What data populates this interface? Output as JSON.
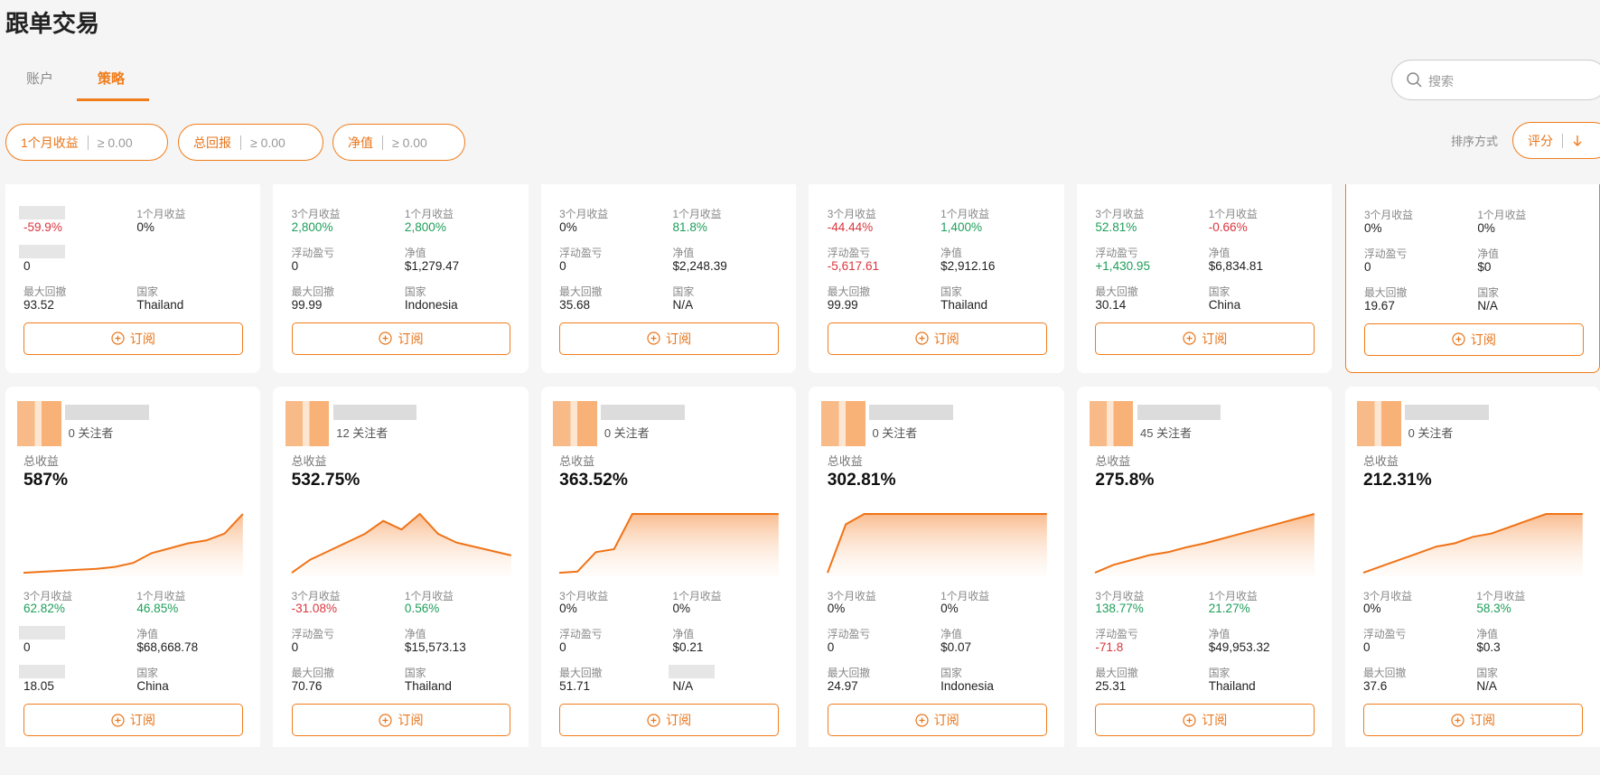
{
  "header": {
    "title": "跟单交易"
  },
  "tabs": [
    {
      "label": "账户"
    },
    {
      "label": "策略",
      "active": true
    }
  ],
  "search": {
    "placeholder": "搜索"
  },
  "filters": [
    {
      "label": "1个月收益",
      "value": "≥ 0.00"
    },
    {
      "label": "总回报",
      "value": "≥ 0.00"
    },
    {
      "label": "净值",
      "value": "≥ 0.00"
    }
  ],
  "sort": {
    "label": "排序方式",
    "option": "评分"
  },
  "cards": [
    {
      "stats": [
        {
          "value": "-59.9%",
          "color": "#d9363e"
        },
        {
          "label": "1个月收益",
          "value": "0%"
        },
        {
          "value": "0"
        },
        null,
        {
          "label": "最大回撤",
          "value": "93.52"
        },
        {
          "label": "国家",
          "value": "Thailand"
        }
      ],
      "button": "订阅"
    },
    {
      "stats": [
        {
          "label": "3个月收益",
          "value": "2,800%",
          "color": "#1e9e5a"
        },
        {
          "label": "1个月收益",
          "value": "2,800%",
          "color": "#1e9e5a"
        },
        {
          "label": "浮动盈亏",
          "value": "0"
        },
        {
          "label": "净值",
          "value": "$1,279.47"
        },
        {
          "label": "最大回撤",
          "value": "99.99"
        },
        {
          "label": "国家",
          "value": "Indonesia"
        }
      ],
      "button": "订阅"
    },
    {
      "stats": [
        {
          "label": "3个月收益",
          "value": "0%"
        },
        {
          "label": "1个月收益",
          "value": "81.8%",
          "color": "#1e9e5a"
        },
        {
          "label": "浮动盈亏",
          "value": "0"
        },
        {
          "label": "净值",
          "value": "$2,248.39"
        },
        {
          "label": "最大回撤",
          "value": "35.68"
        },
        {
          "label": "国家",
          "value": "N/A"
        }
      ],
      "button": "订阅"
    },
    {
      "stats": [
        {
          "label": "3个月收益",
          "value": "-44.44%",
          "color": "#d9363e"
        },
        {
          "label": "1个月收益",
          "value": "1,400%",
          "color": "#1e9e5a"
        },
        {
          "label": "浮动盈亏",
          "value": "-5,617.61",
          "color": "#d9363e"
        },
        {
          "label": "净值",
          "value": "$2,912.16"
        },
        {
          "label": "最大回撤",
          "value": "99.99"
        },
        {
          "label": "国家",
          "value": "Thailand"
        }
      ],
      "button": "订阅"
    },
    {
      "stats": [
        {
          "label": "3个月收益",
          "value": "52.81%",
          "color": "#1e9e5a"
        },
        {
          "label": "1个月收益",
          "value": "-0.66%",
          "color": "#d9363e"
        },
        {
          "label": "浮动盈亏",
          "value": "+1,430.95",
          "color": "#1e9e5a"
        },
        {
          "label": "净值",
          "value": "$6,834.81"
        },
        {
          "label": "最大回撤",
          "value": "30.14"
        },
        {
          "label": "国家",
          "value": "China"
        }
      ],
      "button": "订阅"
    },
    {
      "highlight": true,
      "stats": [
        {
          "label": "3个月收益",
          "value": "0%"
        },
        {
          "label": "1个月收益",
          "value": "0%"
        },
        {
          "label": "浮动盈亏",
          "value": "0"
        },
        {
          "label": "净值",
          "value": "$0"
        },
        {
          "label": "最大回撤",
          "value": "19.67"
        },
        {
          "label": "国家",
          "value": "N/A"
        }
      ],
      "button": "订阅"
    },
    {
      "followers": "0 关注者",
      "total_label": "总收益",
      "total": "587%",
      "trend": [
        0,
        1,
        2,
        3,
        4,
        6,
        10,
        20,
        25,
        30,
        33,
        40,
        60
      ],
      "stats": [
        {
          "label": "3个月收益",
          "value": "62.82%",
          "color": "#1e9e5a"
        },
        {
          "label": "1个月收益",
          "value": "46.85%",
          "color": "#1e9e5a"
        },
        {
          "value": "0"
        },
        {
          "label": "净值",
          "value": "$68,668.78"
        },
        {
          "value": "18.05"
        },
        {
          "label": "国家",
          "value": "China"
        }
      ],
      "button": "订阅"
    },
    {
      "followers": "12 关注者",
      "total_label": "总收益",
      "total": "532.75%",
      "trend": [
        10,
        25,
        35,
        45,
        55,
        70,
        60,
        78,
        55,
        45,
        40,
        35,
        30
      ],
      "stats": [
        {
          "label": "3个月收益",
          "value": "-31.08%",
          "color": "#d9363e"
        },
        {
          "label": "1个月收益",
          "value": "0.56%",
          "color": "#1e9e5a"
        },
        {
          "label": "浮动盈亏",
          "value": "0"
        },
        {
          "label": "净值",
          "value": "$15,573.13"
        },
        {
          "label": "最大回撤",
          "value": "70.76"
        },
        {
          "label": "国家",
          "value": "Thailand"
        }
      ],
      "button": "订阅"
    },
    {
      "followers": "0 关注者",
      "total_label": "总收益",
      "total": "363.52%",
      "trend": [
        0,
        2,
        35,
        40,
        100,
        100,
        100,
        100,
        100,
        100,
        100,
        100,
        100
      ],
      "stats": [
        {
          "label": "3个月收益",
          "value": "0%"
        },
        {
          "label": "1个月收益",
          "value": "0%"
        },
        {
          "label": "浮动盈亏",
          "value": "0"
        },
        {
          "label": "净值",
          "value": "$0.21"
        },
        {
          "label": "最大回撤",
          "value": "51.71"
        },
        {
          "value": "N/A"
        }
      ],
      "button": "订阅"
    },
    {
      "followers": "0 关注者",
      "total_label": "总收益",
      "total": "302.81%",
      "trend": [
        0,
        70,
        85,
        85,
        85,
        85,
        85,
        85,
        85,
        85,
        85,
        85,
        85
      ],
      "stats": [
        {
          "label": "3个月收益",
          "value": "0%"
        },
        {
          "label": "1个月收益",
          "value": "0%"
        },
        {
          "label": "浮动盈亏",
          "value": "0"
        },
        {
          "label": "净值",
          "value": "$0.07"
        },
        {
          "label": "最大回撤",
          "value": "24.97"
        },
        {
          "label": "国家",
          "value": "Indonesia"
        }
      ],
      "button": "订阅"
    },
    {
      "followers": "45 关注者",
      "total_label": "总收益",
      "total": "275.8%",
      "trend": [
        40,
        48,
        53,
        58,
        61,
        66,
        70,
        75,
        80,
        85,
        90,
        95,
        100
      ],
      "stats": [
        {
          "label": "3个月收益",
          "value": "138.77%",
          "color": "#1e9e5a"
        },
        {
          "label": "1个月收益",
          "value": "21.27%",
          "color": "#1e9e5a"
        },
        {
          "label": "浮动盈亏",
          "value": "-71.8",
          "color": "#d9363e"
        },
        {
          "label": "净值",
          "value": "$49,953.32"
        },
        {
          "label": "最大回撤",
          "value": "25.31"
        },
        {
          "label": "国家",
          "value": "Thailand"
        }
      ],
      "button": "订阅"
    },
    {
      "followers": "0 关注者",
      "total_label": "总收益",
      "total": "212.31%",
      "trend": [
        0,
        10,
        20,
        30,
        40,
        45,
        55,
        60,
        70,
        80,
        90,
        90,
        90
      ],
      "stats": [
        {
          "label": "3个月收益",
          "value": "0%"
        },
        {
          "label": "1个月收益",
          "value": "58.3%",
          "color": "#1e9e5a"
        },
        {
          "label": "浮动盈亏",
          "value": "0"
        },
        {
          "label": "净值",
          "value": "$0.3"
        },
        {
          "label": "最大回撤",
          "value": "37.6"
        },
        {
          "label": "国家",
          "value": "N/A"
        }
      ],
      "button": "订阅"
    }
  ]
}
